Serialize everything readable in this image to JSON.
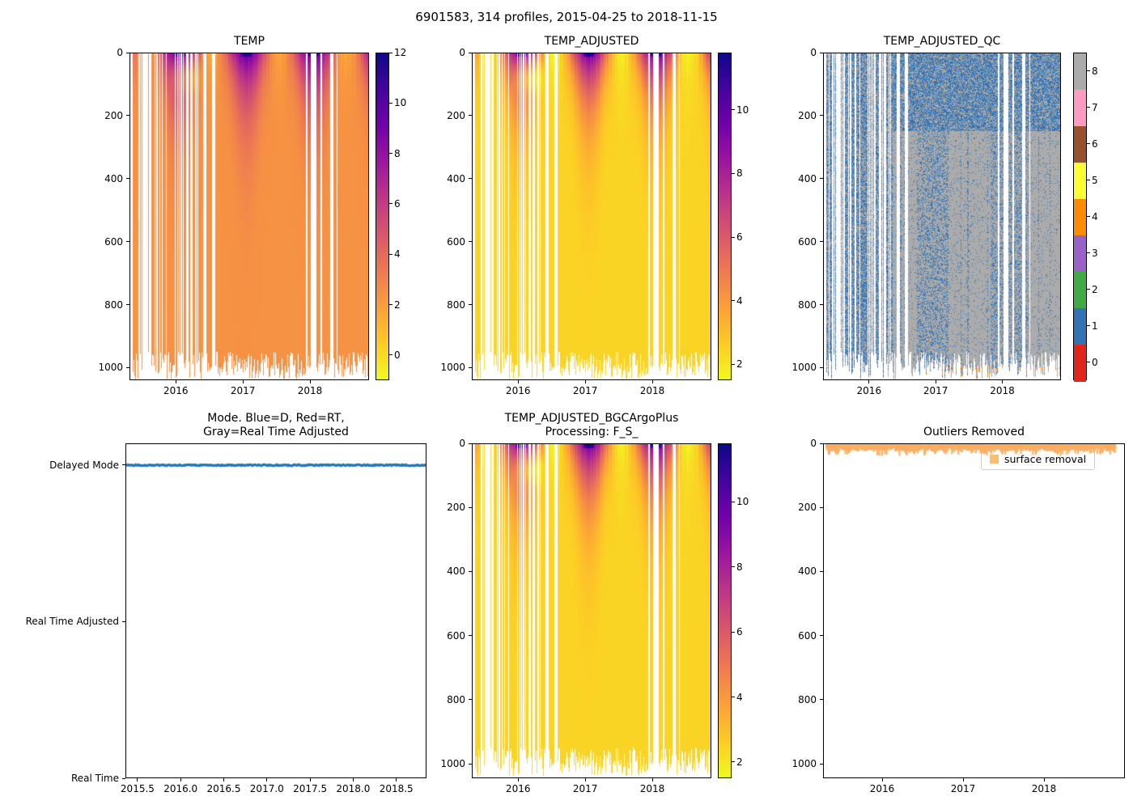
{
  "figure": {
    "title": "6901583, 314 profiles, 2015-04-25 to 2018-11-15"
  },
  "colors": {
    "mode_line": "#1f77b4",
    "outlier_marker": "#fdae61",
    "legend_marker": "#fdbf6f",
    "qc_flag_colors": [
      "#e1251b",
      "#3273b5",
      "#3fab45",
      "#9a62c9",
      "#ff8c00",
      "#fdfd33",
      "#99512d",
      "#ff9ac1",
      "#ababab"
    ],
    "plasma_stops": [
      "#0d0887",
      "#46039f",
      "#7201a8",
      "#9c179e",
      "#bd3786",
      "#d8576b",
      "#ed7953",
      "#fb9f3a",
      "#fdca26",
      "#f0f921"
    ]
  },
  "chart_data": [
    {
      "id": "TEMP",
      "type": "heatmap",
      "title": "TEMP",
      "x_range": [
        2015.31,
        2018.88
      ],
      "x_tick_values": [
        2016,
        2017,
        2018
      ],
      "x_tick_labels": [
        "2016",
        "2017",
        "2018"
      ],
      "y_range": [
        0,
        1040
      ],
      "y_tick_values": [
        0,
        200,
        400,
        600,
        800,
        1000
      ],
      "y_tick_labels": [
        "0",
        "200",
        "400",
        "600",
        "800",
        "1000"
      ],
      "y_axis": "depth, increasing downward",
      "colormap": "plasma_r",
      "value_range": [
        -1,
        12
      ],
      "colorbar_tick_values": [
        12,
        10,
        8,
        6,
        4,
        2,
        0
      ],
      "colorbar_tick_labels": [
        "12",
        "10",
        "8",
        "6",
        "4",
        "2",
        "0"
      ],
      "n_profiles": 314,
      "pattern": {
        "deep_temp": 2.4,
        "surface_mean": 5.6,
        "surface_amplitude": 3.9,
        "summer_peak_phase": 2017.05,
        "cold_subsurface_event": [
          2015.88,
          2016.42
        ],
        "sparse_until": 2016.35,
        "profile_max_depth": [
          950,
          1040
        ]
      }
    },
    {
      "id": "TEMP_ADJUSTED",
      "type": "heatmap",
      "title": "TEMP_ADJUSTED",
      "x_range": [
        2015.31,
        2018.88
      ],
      "x_tick_values": [
        2016,
        2017,
        2018
      ],
      "x_tick_labels": [
        "2016",
        "2017",
        "2018"
      ],
      "y_range": [
        0,
        1040
      ],
      "y_tick_values": [
        0,
        200,
        400,
        600,
        800,
        1000
      ],
      "y_tick_labels": [
        "0",
        "200",
        "400",
        "600",
        "800",
        "1000"
      ],
      "colormap": "plasma_r",
      "value_range": [
        1.5,
        11.8
      ],
      "colorbar_tick_values": [
        10,
        8,
        6,
        4,
        2
      ],
      "colorbar_tick_labels": [
        "10",
        "8",
        "6",
        "4",
        "2"
      ],
      "n_profiles": 314
    },
    {
      "id": "TEMP_ADJUSTED_QC",
      "type": "heatmap",
      "title": "TEMP_ADJUSTED_QC",
      "x_range": [
        2015.31,
        2018.88
      ],
      "x_tick_values": [
        2016,
        2017,
        2018
      ],
      "x_tick_labels": [
        "2016",
        "2017",
        "2018"
      ],
      "y_range": [
        0,
        1040
      ],
      "y_tick_values": [
        0,
        200,
        400,
        600,
        800,
        1000
      ],
      "y_tick_labels": [
        "0",
        "200",
        "400",
        "600",
        "800",
        "1000"
      ],
      "colormap": "discrete QC flags 0-8",
      "colorbar_tick_values": [
        8,
        7,
        6,
        5,
        4,
        3,
        2,
        1,
        0
      ],
      "colorbar_tick_labels": [
        "8",
        "7",
        "6",
        "5",
        "4",
        "3",
        "2",
        "1",
        "0"
      ],
      "pattern": {
        "background_flag": 8,
        "speckle_flag": 1,
        "bottom_edge_flag": 4,
        "surface_dense_depth": 250,
        "dense_clusters": [
          [
            2016.72,
            2017.18
          ],
          [
            2017.82,
            2018.38
          ]
        ]
      }
    },
    {
      "id": "MODE",
      "type": "scatter",
      "title": "Mode. Blue=D, Red=RT,",
      "title2": "Gray=Real Time Adjusted",
      "x_range": [
        2015.36,
        2018.85
      ],
      "x_tick_values": [
        2015.5,
        2016.0,
        2016.5,
        2017.0,
        2017.5,
        2018.0,
        2018.5
      ],
      "x_tick_labels": [
        "2015.5",
        "2016.0",
        "2016.5",
        "2017.0",
        "2017.5",
        "2018.0",
        "2018.5"
      ],
      "y_categories": [
        "Delayed Mode",
        "Real Time Adjusted",
        "Real Time"
      ],
      "series": [
        {
          "name": "mode",
          "value": "Delayed Mode",
          "color": "#1f77b4",
          "note": "all 314 profiles plotted at Delayed Mode"
        }
      ]
    },
    {
      "id": "TEMP_ADJUSTED_BGC",
      "type": "heatmap",
      "title": "TEMP_ADJUSTED_BGCArgoPlus",
      "title2": "Processing: F_S_",
      "x_range": [
        2015.31,
        2018.88
      ],
      "x_tick_values": [
        2016,
        2017,
        2018
      ],
      "x_tick_labels": [
        "2016",
        "2017",
        "2018"
      ],
      "y_range": [
        0,
        1045
      ],
      "y_tick_values": [
        0,
        200,
        400,
        600,
        800,
        1000
      ],
      "y_tick_labels": [
        "0",
        "200",
        "400",
        "600",
        "800",
        "1000"
      ],
      "colormap": "plasma_r",
      "value_range": [
        1.5,
        11.8
      ],
      "colorbar_tick_values": [
        10,
        8,
        6,
        4,
        2
      ],
      "colorbar_tick_labels": [
        "10",
        "8",
        "6",
        "4",
        "2"
      ],
      "n_profiles": 314
    },
    {
      "id": "OUTLIERS",
      "type": "scatter",
      "title": "Outliers Removed",
      "x_range": [
        2015.27,
        2019.0
      ],
      "x_tick_values": [
        2016,
        2017,
        2018
      ],
      "x_tick_labels": [
        "2016",
        "2017",
        "2018"
      ],
      "y_range": [
        0,
        1045
      ],
      "y_tick_values": [
        0,
        200,
        400,
        600,
        800,
        1000
      ],
      "y_tick_labels": [
        "0",
        "200",
        "400",
        "600",
        "800",
        "1000"
      ],
      "legend_label": "surface removal",
      "points": {
        "depth_range": [
          0,
          20
        ],
        "time_range": [
          2015.31,
          2018.88
        ],
        "description": "surface-removal outlier marks at ~0-20 dbar for every profile"
      }
    }
  ]
}
